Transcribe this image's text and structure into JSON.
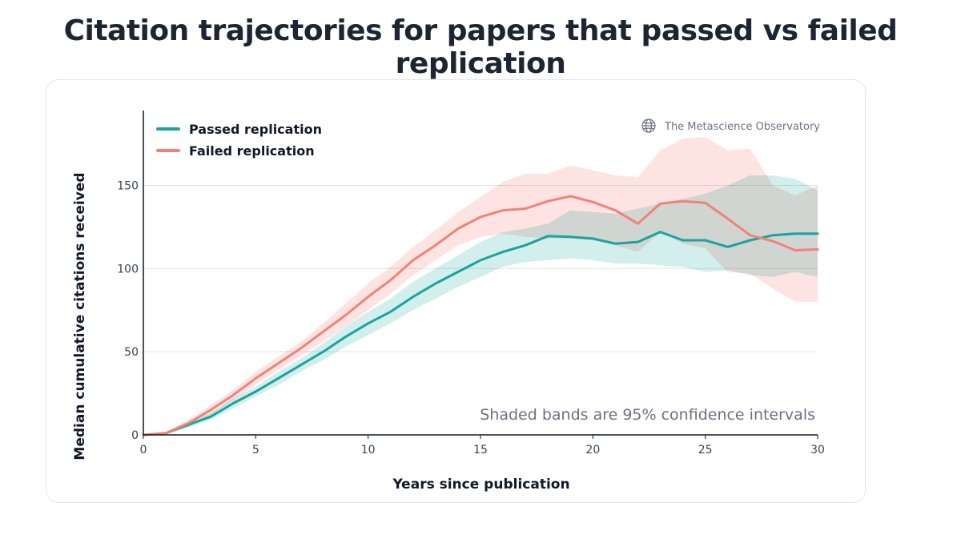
{
  "title": "Citation trajectories for papers that passed vs failed replication",
  "source": {
    "label": "The Metascience Observatory",
    "icon": "globe-icon"
  },
  "note": "Shaded bands are 95% confidence intervals",
  "chart_data": {
    "type": "line",
    "xlabel": "Years since publication",
    "ylabel": "Median cumulative citations received",
    "xlim": [
      0,
      30
    ],
    "ylim": [
      0,
      195
    ],
    "xticks": [
      0,
      5,
      10,
      15,
      20,
      25,
      30
    ],
    "yticks": [
      0,
      50,
      100,
      150
    ],
    "grid": {
      "horizontal": true,
      "vertical": false
    },
    "legend_position": "top-left",
    "x": [
      0,
      1,
      2,
      3,
      4,
      5,
      6,
      7,
      8,
      9,
      10,
      11,
      12,
      13,
      14,
      15,
      16,
      17,
      18,
      19,
      20,
      21,
      22,
      23,
      24,
      25,
      26,
      27,
      28,
      29,
      30
    ],
    "series": [
      {
        "name": "Passed replication",
        "color": "#1ba39c",
        "band_color": "#bfe8e6",
        "values": [
          0,
          1,
          6,
          11,
          19,
          26,
          34,
          42,
          50,
          59,
          67,
          74,
          83,
          91,
          98,
          105,
          110,
          114,
          119.5,
          119,
          118,
          115,
          116,
          122,
          117,
          117,
          113,
          117,
          120,
          121,
          121
        ],
        "lower": [
          0,
          0.5,
          4.5,
          9,
          16,
          23,
          30,
          38,
          45,
          53,
          60,
          67,
          75,
          82,
          89,
          95,
          101,
          104,
          105,
          106,
          105,
          103,
          103,
          102,
          101,
          98,
          99,
          96,
          95,
          98,
          95
        ],
        "upper": [
          0,
          1.5,
          7.5,
          13,
          22,
          29,
          38,
          46,
          55,
          65,
          74,
          82,
          92,
          100,
          108,
          116,
          122,
          124,
          127,
          135,
          134,
          133,
          136,
          139,
          142,
          145,
          150,
          156,
          156,
          154,
          147
        ]
      },
      {
        "name": "Failed replication",
        "color": "#f08377",
        "band_color": "#fcd9d5",
        "values": [
          0,
          1,
          7,
          15,
          24,
          34,
          43,
          52,
          62,
          72,
          83,
          93,
          105,
          114,
          124,
          131,
          135,
          136,
          140.5,
          143.5,
          140,
          135,
          127,
          139,
          140.5,
          139.5,
          130,
          120,
          116.5,
          111,
          111.5
        ],
        "lower": [
          0,
          0.5,
          5,
          12,
          21,
          30,
          39,
          47,
          56,
          65,
          75,
          85,
          96,
          105,
          114,
          119,
          121,
          119,
          118,
          118,
          117,
          114,
          110,
          122,
          115,
          112,
          98,
          97,
          88,
          80,
          80
        ],
        "upper": [
          0,
          1.5,
          9,
          18,
          27,
          38,
          47,
          56,
          67,
          79,
          91,
          101,
          113,
          123,
          134,
          143,
          152,
          157,
          157,
          162,
          159,
          156,
          155,
          171,
          178,
          179,
          171,
          172,
          150,
          144,
          150
        ]
      }
    ]
  }
}
